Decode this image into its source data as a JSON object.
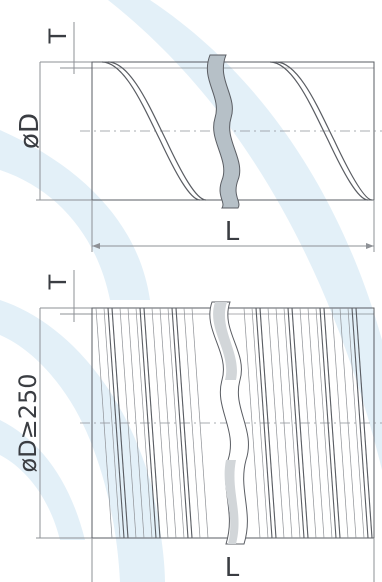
{
  "colors": {
    "line": "#5a5d63",
    "dim": "#8e9196",
    "label": "#3a3d42",
    "watermark": "#e3f0f8",
    "break_fill": "#b6c0c7"
  },
  "top_diagram": {
    "thickness_label": "T",
    "diameter_label": "øD",
    "length_label": "L"
  },
  "bottom_diagram": {
    "thickness_label": "T",
    "diameter_label": "øD≥250",
    "length_label": "L"
  }
}
